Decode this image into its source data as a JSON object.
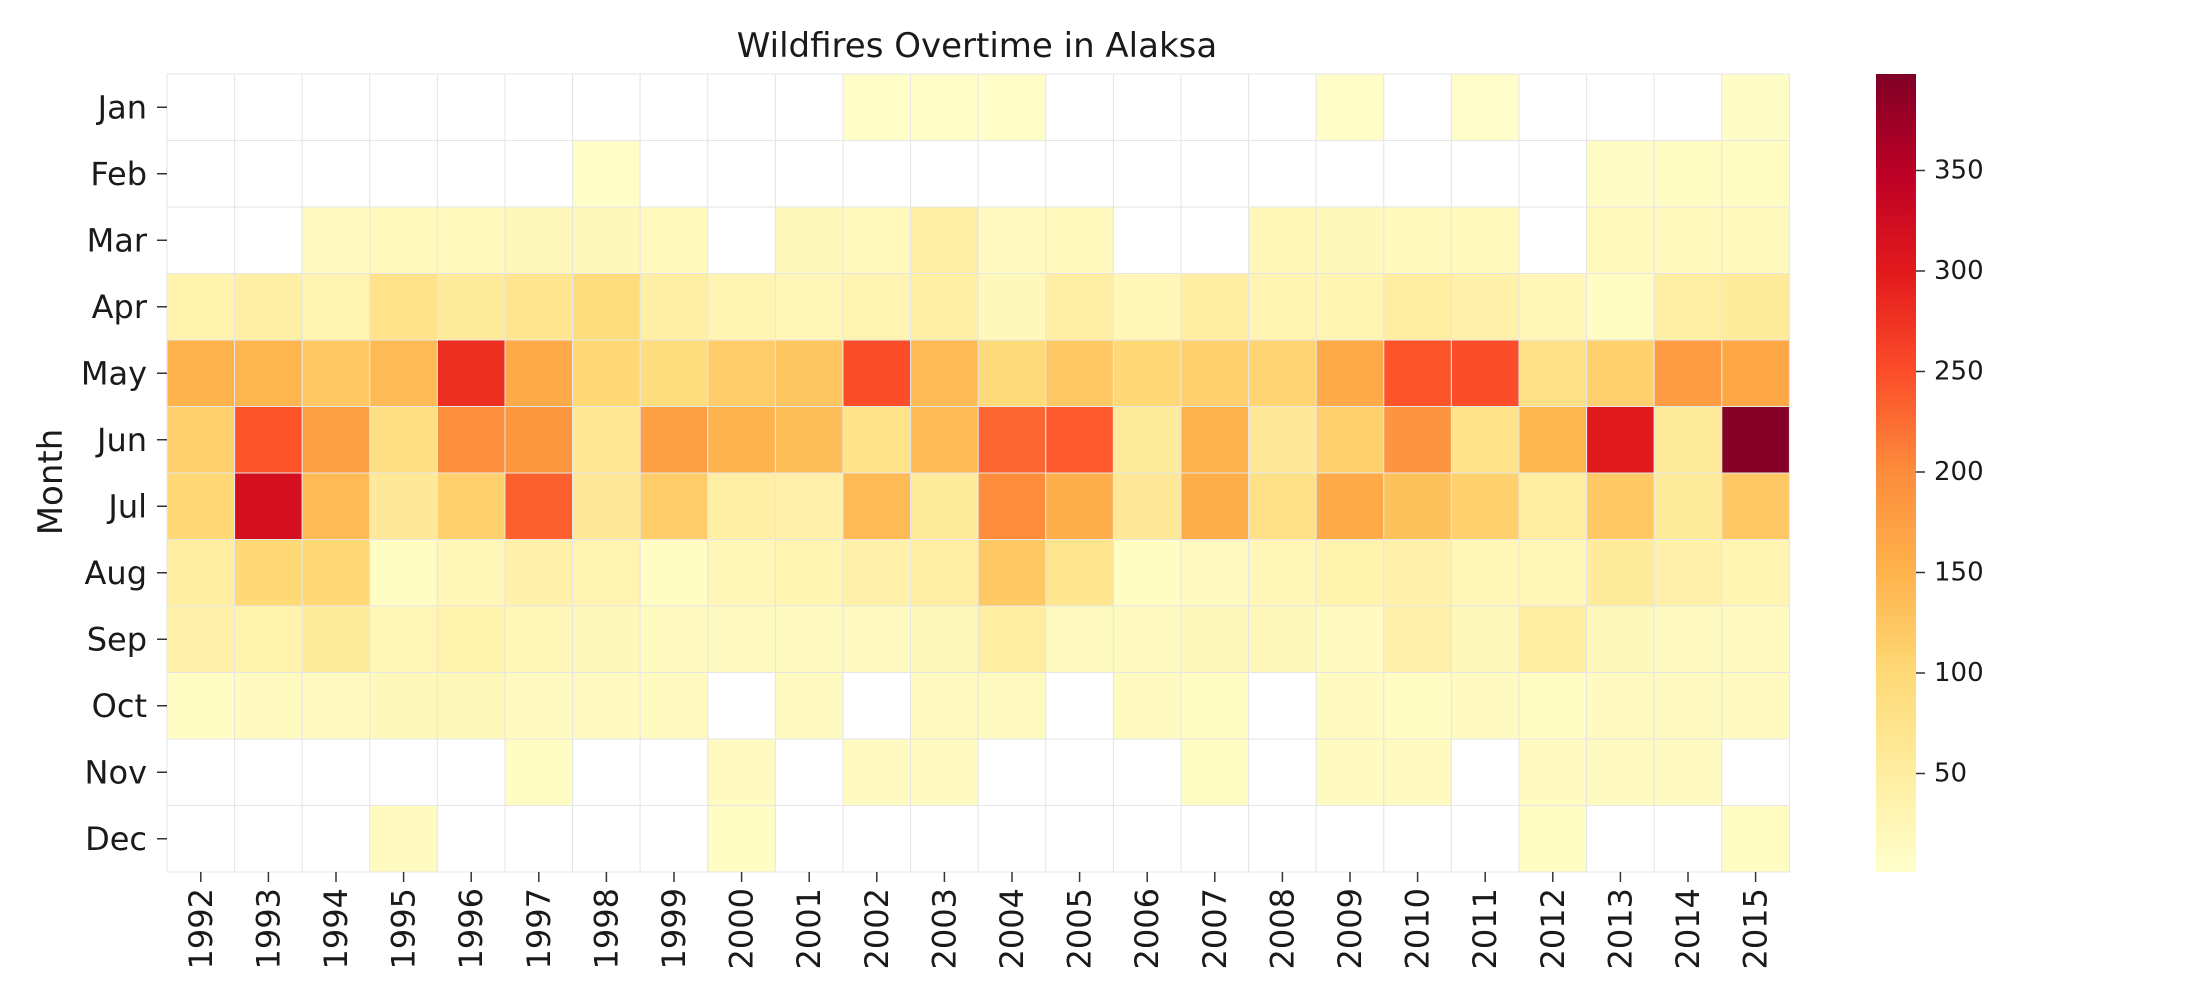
{
  "chart_data": {
    "type": "heatmap",
    "title": "Wildfires Overtime in Alaksa",
    "ylabel": "Month",
    "xlabel": "",
    "x": [
      "1992",
      "1993",
      "1994",
      "1995",
      "1996",
      "1997",
      "1998",
      "1999",
      "2000",
      "2001",
      "2002",
      "2003",
      "2004",
      "2005",
      "2006",
      "2007",
      "2008",
      "2009",
      "2010",
      "2011",
      "2012",
      "2013",
      "2014",
      "2015"
    ],
    "y": [
      "Jan",
      "Feb",
      "Mar",
      "Apr",
      "May",
      "Jun",
      "Jul",
      "Aug",
      "Sep",
      "Oct",
      "Nov",
      "Dec"
    ],
    "values": [
      [
        null,
        null,
        null,
        null,
        null,
        null,
        null,
        null,
        null,
        null,
        4,
        5,
        6,
        null,
        null,
        null,
        null,
        4,
        null,
        3,
        null,
        null,
        null,
        7
      ],
      [
        null,
        null,
        null,
        null,
        null,
        null,
        5,
        null,
        null,
        null,
        null,
        null,
        null,
        null,
        null,
        null,
        null,
        null,
        null,
        null,
        null,
        8,
        10,
        10
      ],
      [
        null,
        null,
        15,
        18,
        18,
        20,
        20,
        18,
        null,
        20,
        18,
        45,
        15,
        18,
        null,
        null,
        25,
        20,
        18,
        18,
        null,
        18,
        18,
        18
      ],
      [
        35,
        45,
        30,
        75,
        55,
        70,
        90,
        45,
        30,
        25,
        30,
        45,
        20,
        45,
        25,
        50,
        30,
        30,
        50,
        40,
        25,
        10,
        45,
        55
      ],
      [
        150,
        145,
        120,
        140,
        280,
        160,
        100,
        90,
        115,
        125,
        250,
        140,
        95,
        120,
        100,
        110,
        105,
        160,
        245,
        250,
        80,
        110,
        180,
        165
      ],
      [
        110,
        245,
        175,
        85,
        195,
        185,
        65,
        175,
        150,
        135,
        75,
        140,
        230,
        240,
        55,
        150,
        60,
        110,
        190,
        75,
        145,
        300,
        55,
        395
      ],
      [
        100,
        320,
        140,
        60,
        110,
        235,
        60,
        115,
        45,
        40,
        140,
        55,
        200,
        155,
        60,
        155,
        80,
        160,
        130,
        110,
        50,
        120,
        55,
        120
      ],
      [
        50,
        100,
        100,
        10,
        25,
        40,
        30,
        10,
        25,
        30,
        40,
        45,
        120,
        70,
        10,
        15,
        25,
        35,
        40,
        25,
        25,
        55,
        40,
        30
      ],
      [
        40,
        35,
        55,
        25,
        35,
        25,
        20,
        15,
        15,
        15,
        15,
        20,
        50,
        15,
        15,
        20,
        20,
        15,
        40,
        20,
        50,
        20,
        15,
        15
      ],
      [
        10,
        15,
        15,
        20,
        20,
        15,
        15,
        15,
        null,
        15,
        null,
        15,
        15,
        null,
        15,
        10,
        null,
        15,
        10,
        15,
        10,
        15,
        15,
        15
      ],
      [
        null,
        null,
        null,
        null,
        null,
        10,
        null,
        null,
        15,
        null,
        15,
        15,
        null,
        null,
        null,
        10,
        null,
        15,
        15,
        null,
        15,
        15,
        15,
        null
      ],
      [
        null,
        null,
        null,
        15,
        null,
        null,
        null,
        null,
        10,
        null,
        null,
        null,
        null,
        null,
        null,
        null,
        null,
        null,
        null,
        null,
        10,
        null,
        null,
        10
      ]
    ],
    "colorbar": {
      "min": 1,
      "max": 398,
      "ticks": [
        50,
        100,
        150,
        200,
        250,
        300,
        350
      ],
      "tick_labels": [
        "50",
        "100",
        "150",
        "200",
        "250",
        "300",
        "350"
      ],
      "colormap": "YlOrRd"
    },
    "grid": false,
    "legend": "colorbar-right"
  }
}
